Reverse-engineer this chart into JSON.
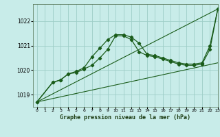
{
  "title": "Graphe pression niveau de la mer (hPa)",
  "background_color": "#c8ece9",
  "grid_color": "#9ecdc7",
  "line_color": "#1a5c1a",
  "xlim": [
    -0.5,
    23
  ],
  "ylim": [
    1018.5,
    1022.7
  ],
  "yticks": [
    1019,
    1020,
    1021,
    1022
  ],
  "xticks": [
    0,
    1,
    2,
    3,
    4,
    5,
    6,
    7,
    8,
    9,
    10,
    11,
    12,
    13,
    14,
    15,
    16,
    17,
    18,
    19,
    20,
    21,
    22,
    23
  ],
  "series": [
    {
      "x": [
        0,
        23
      ],
      "y": [
        1018.7,
        1022.5
      ],
      "marker": false,
      "lw": 0.8
    },
    {
      "x": [
        0,
        23
      ],
      "y": [
        1018.7,
        1020.3
      ],
      "marker": false,
      "lw": 0.8
    },
    {
      "x": [
        0,
        2,
        3,
        4,
        5,
        6,
        7,
        8,
        9,
        10,
        11,
        12,
        13,
        14,
        15,
        16,
        17,
        18,
        19,
        20,
        21,
        22,
        23
      ],
      "y": [
        1018.7,
        1019.5,
        1019.6,
        1019.85,
        1019.95,
        1020.1,
        1020.55,
        1020.9,
        1021.25,
        1021.45,
        1021.45,
        1021.35,
        1021.1,
        1020.65,
        1020.6,
        1020.5,
        1020.4,
        1020.3,
        1020.25,
        1020.25,
        1020.3,
        1021.0,
        1022.5
      ],
      "marker": true,
      "lw": 0.9
    },
    {
      "x": [
        0,
        2,
        3,
        4,
        5,
        6,
        7,
        8,
        9,
        10,
        11,
        12,
        13,
        14,
        15,
        16,
        17,
        18,
        19,
        20,
        21,
        22,
        23
      ],
      "y": [
        1018.7,
        1019.5,
        1019.6,
        1019.85,
        1019.9,
        1020.05,
        1020.2,
        1020.5,
        1020.85,
        1021.4,
        1021.4,
        1021.25,
        1020.75,
        1020.6,
        1020.55,
        1020.45,
        1020.35,
        1020.25,
        1020.2,
        1020.2,
        1020.25,
        1020.85,
        1022.5
      ],
      "marker": true,
      "lw": 0.9
    }
  ]
}
